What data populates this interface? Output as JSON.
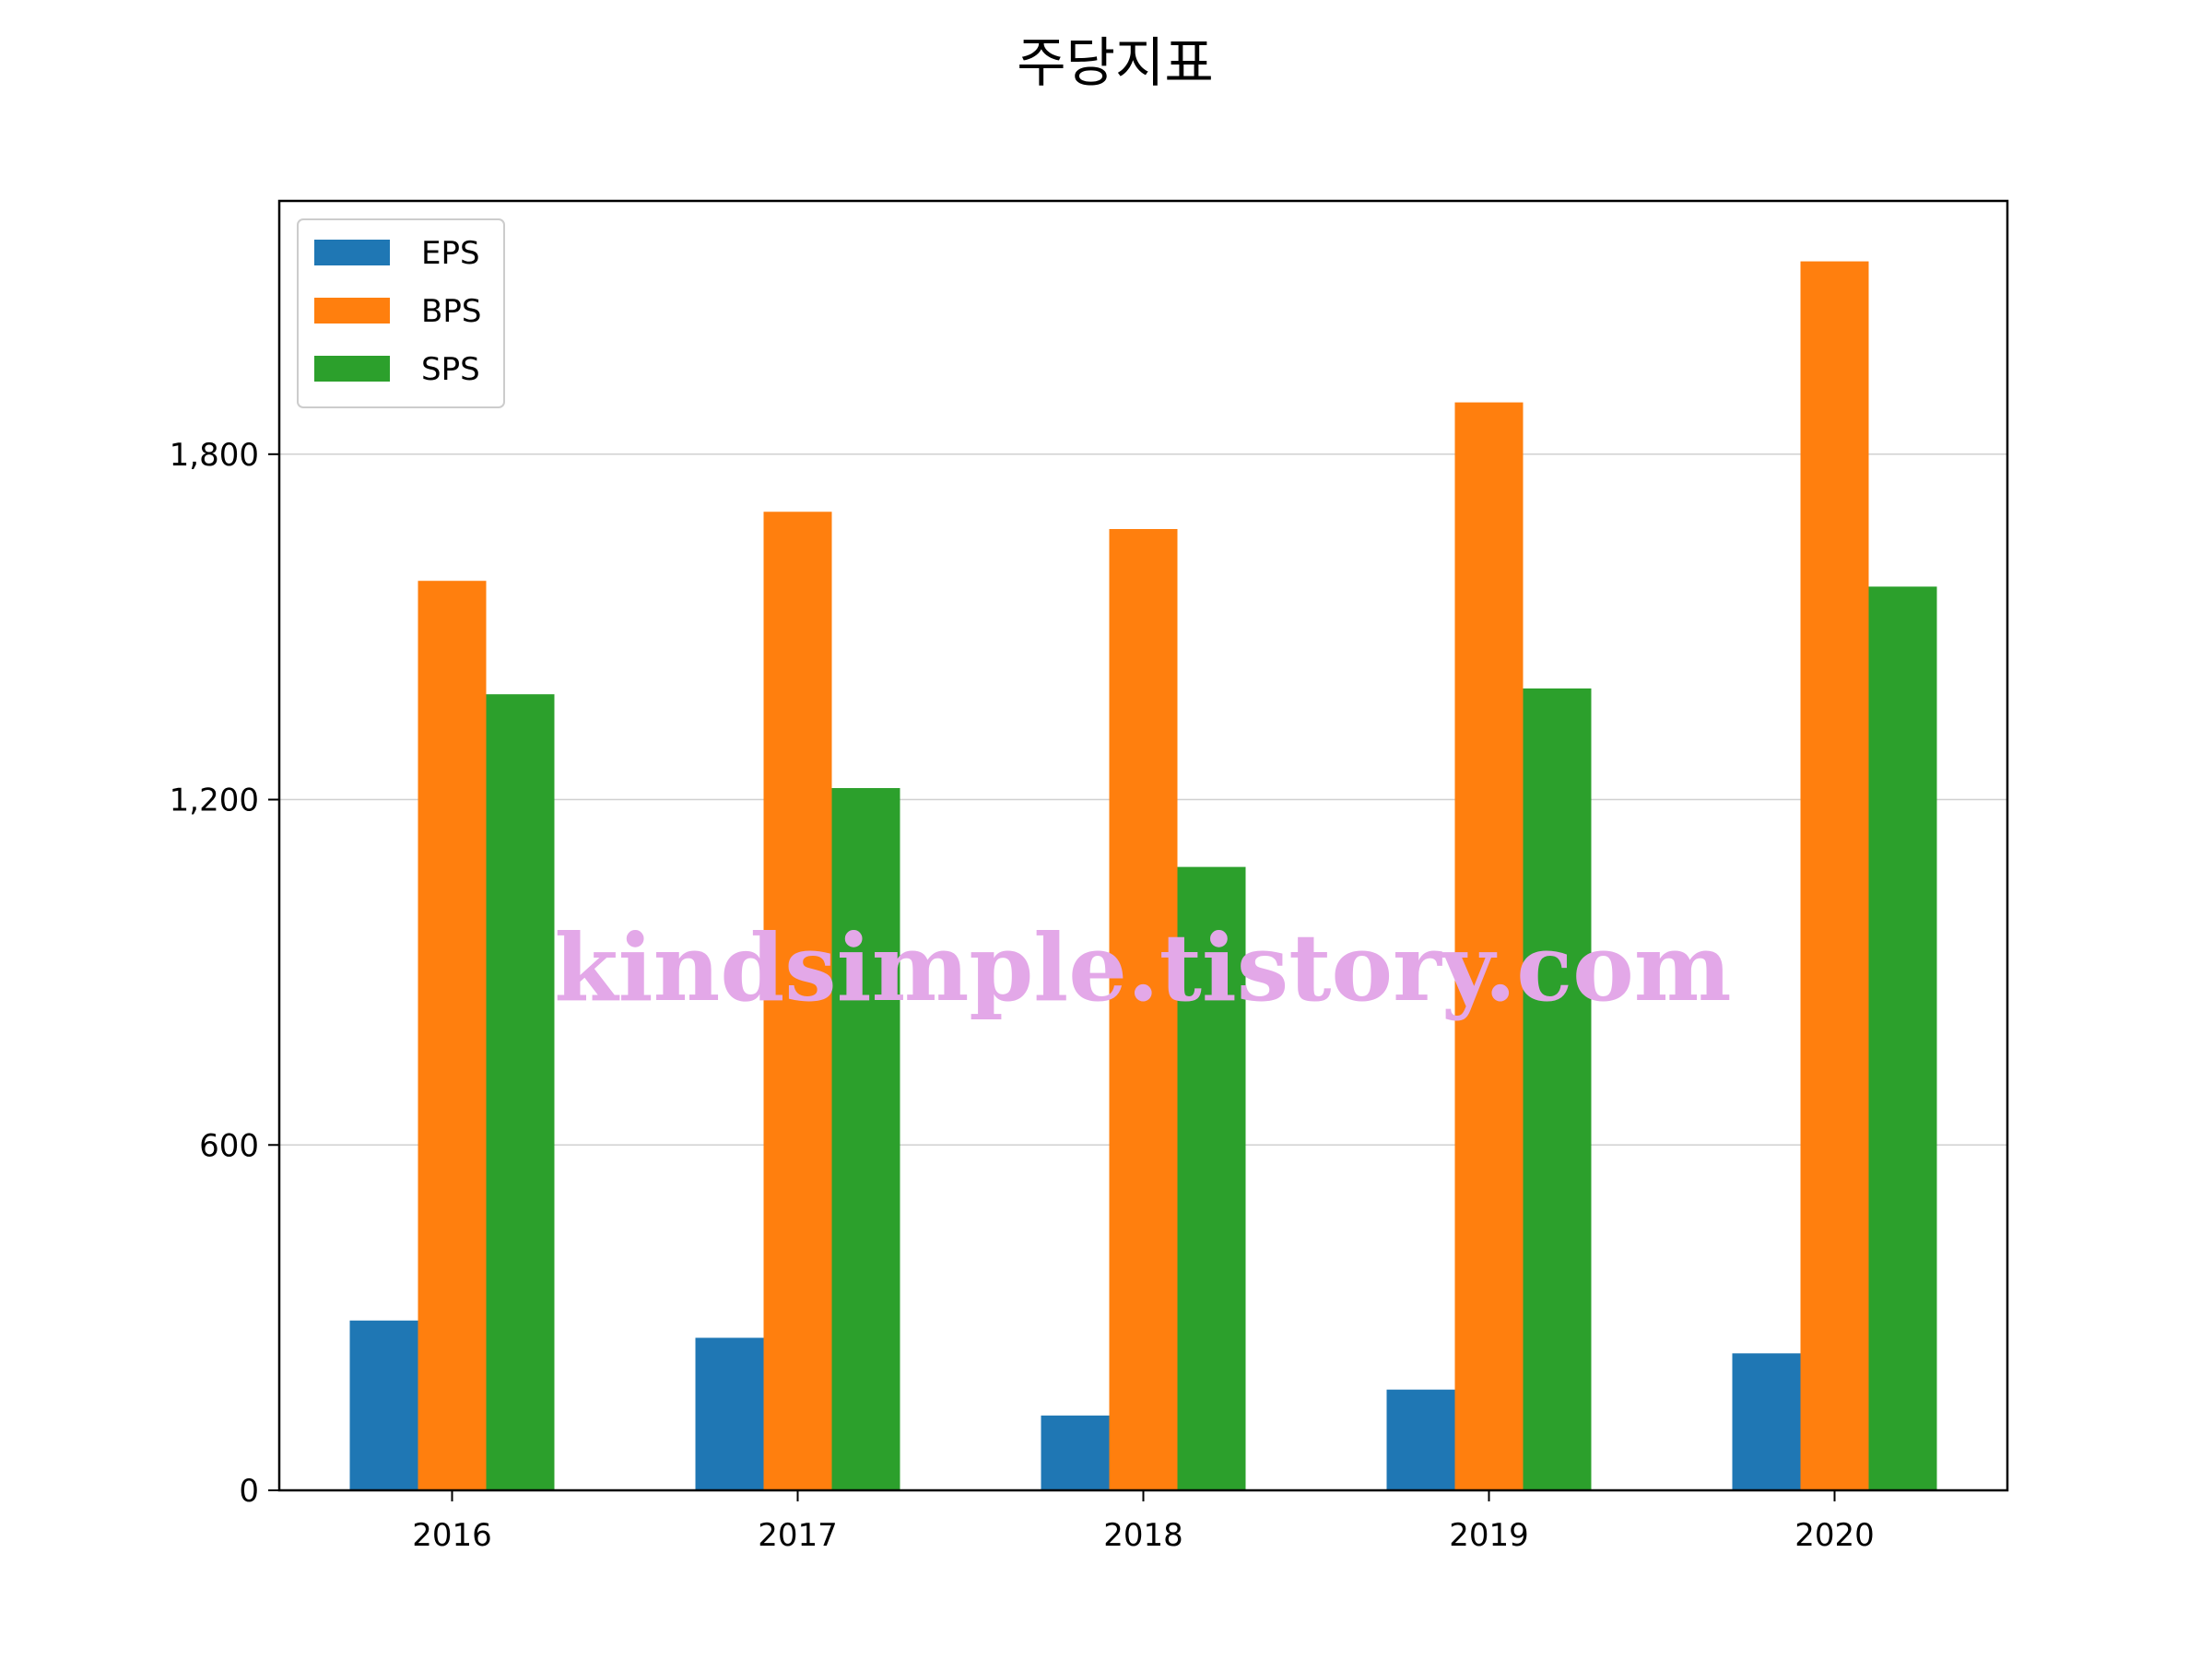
{
  "chart_data": {
    "type": "bar",
    "title": "주당지표",
    "xlabel": "",
    "ylabel": "",
    "categories": [
      "2016",
      "2017",
      "2018",
      "2019",
      "2020"
    ],
    "series": [
      {
        "name": "EPS",
        "color": "#1f77b4",
        "values": [
          295,
          265,
          130,
          175,
          238
        ]
      },
      {
        "name": "BPS",
        "color": "#ff7f0e",
        "values": [
          1580,
          1700,
          1670,
          1890,
          2135
        ]
      },
      {
        "name": "SPS",
        "color": "#2ca02c",
        "values": [
          1383,
          1220,
          1083,
          1393,
          1570
        ]
      }
    ],
    "yticks": [
      0,
      600,
      1200,
      1800
    ],
    "ytick_labels": [
      "0",
      "600",
      "1,200",
      "1,800"
    ],
    "ylim": [
      0,
      2240
    ],
    "grid": "y",
    "legend": "top-left",
    "watermark": "kindsimple.tistory.com"
  }
}
